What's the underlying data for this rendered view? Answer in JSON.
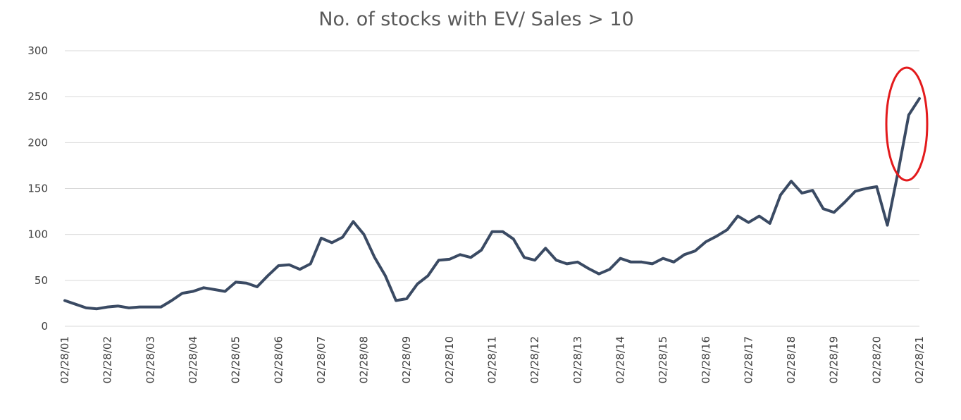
{
  "chart_data": {
    "type": "line",
    "title": "No. of stocks with EV/ Sales > 10",
    "categories": [
      "02/28/01",
      null,
      null,
      null,
      "02/28/02",
      null,
      null,
      null,
      "02/28/03",
      null,
      null,
      null,
      "02/28/04",
      null,
      null,
      null,
      "02/28/05",
      null,
      null,
      null,
      "02/28/06",
      null,
      null,
      null,
      "02/28/07",
      null,
      null,
      null,
      "02/28/08",
      null,
      null,
      null,
      "02/28/09",
      null,
      null,
      null,
      "02/28/10",
      null,
      null,
      null,
      "02/28/11",
      null,
      null,
      null,
      "02/28/12",
      null,
      null,
      null,
      "02/28/13",
      null,
      null,
      null,
      "02/28/14",
      null,
      null,
      null,
      "02/28/15",
      null,
      null,
      null,
      "02/28/16",
      null,
      null,
      null,
      "02/28/17",
      null,
      null,
      null,
      "02/28/18",
      null,
      null,
      null,
      "02/28/19",
      null,
      null,
      null,
      "02/28/20",
      null,
      null,
      null,
      "02/28/21"
    ],
    "series": [
      {
        "name": "No. of stocks",
        "color": "#3a4a63",
        "values": [
          28,
          24,
          20,
          19,
          21,
          22,
          20,
          21,
          21,
          21,
          28,
          36,
          38,
          42,
          40,
          38,
          48,
          47,
          43,
          55,
          66,
          67,
          62,
          68,
          96,
          91,
          97,
          114,
          100,
          75,
          55,
          28,
          30,
          46,
          55,
          72,
          73,
          78,
          75,
          83,
          103,
          103,
          95,
          75,
          72,
          85,
          72,
          68,
          70,
          63,
          57,
          62,
          74,
          70,
          70,
          68,
          74,
          70,
          78,
          82,
          92,
          98,
          105,
          120,
          113,
          120,
          112,
          143,
          158,
          145,
          148,
          128,
          124,
          135,
          147,
          150,
          152,
          110,
          168,
          230,
          248
        ]
      }
    ],
    "ylim": [
      0,
      300
    ],
    "yticks": [
      0,
      50,
      100,
      150,
      200,
      250,
      300
    ],
    "grid": true
  }
}
